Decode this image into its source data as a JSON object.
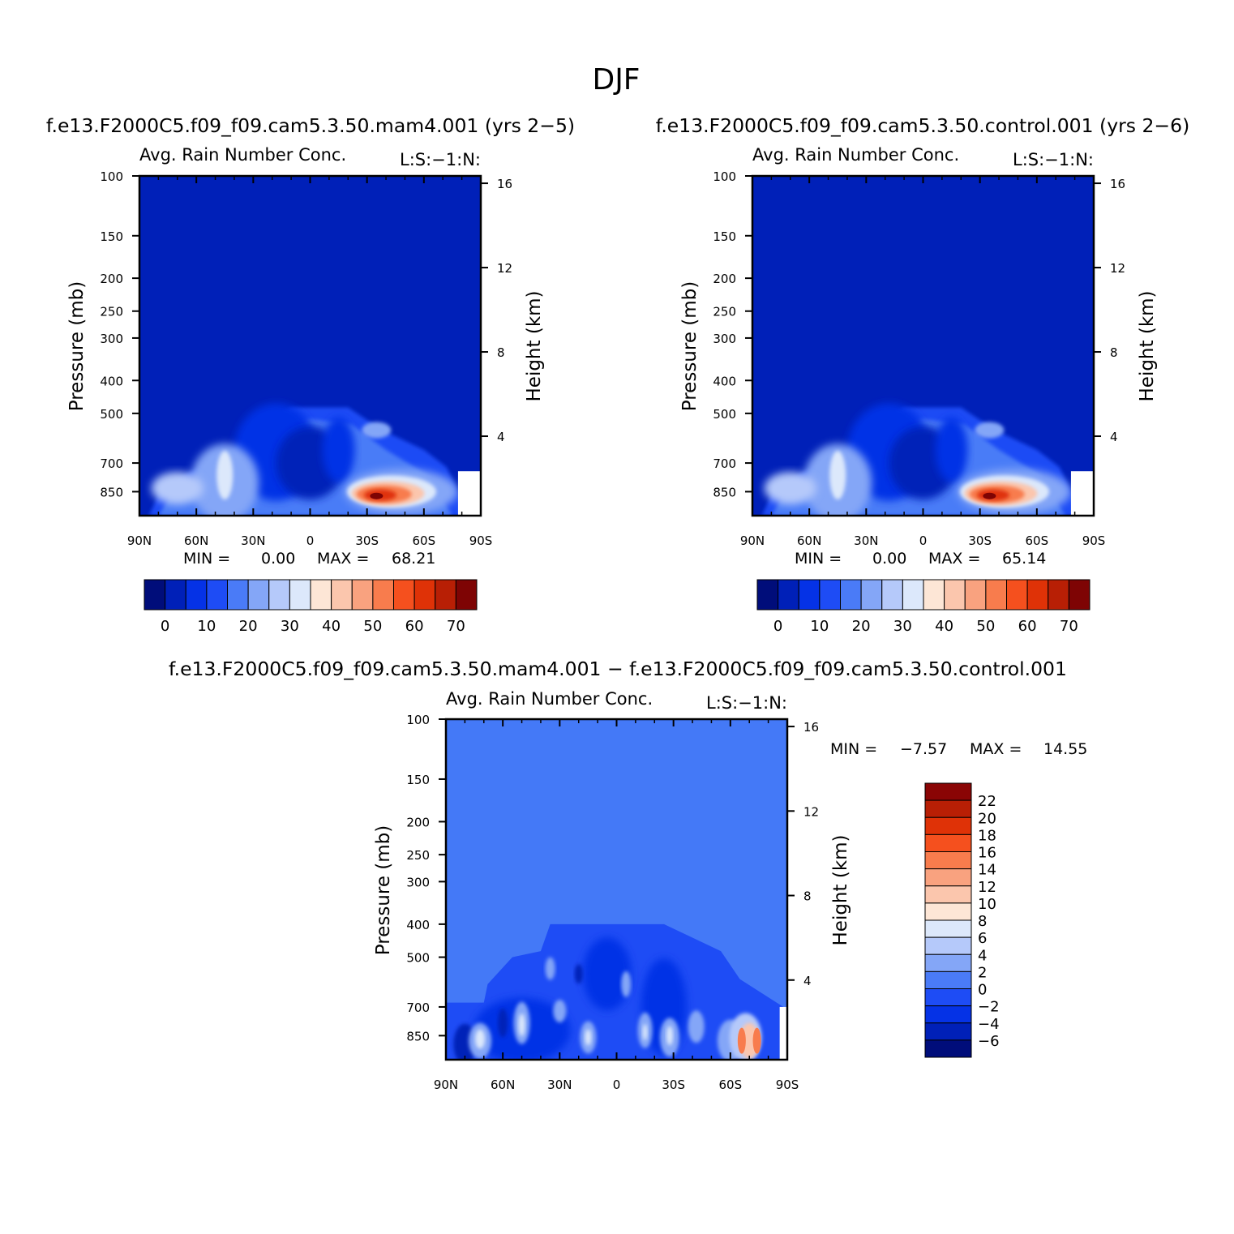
{
  "figure": {
    "title": "DJF"
  },
  "chart_data": [
    {
      "type": "heatmap",
      "case_title": "f.e13.F2000C5.f09_f09.cam5.3.50.mam4.001 (yrs 2−5)",
      "variable": "Avg. Rain Number Conc.",
      "tag": "L:S:−1:N:",
      "ylabel": "Pressure (mb)",
      "ylabel_right": "Height (km)",
      "x_ticks": [
        "90N",
        "60N",
        "30N",
        "0",
        "30S",
        "60S",
        "90S"
      ],
      "y_ticks": [
        "100",
        "150",
        "200",
        "250",
        "300",
        "400",
        "500",
        "700",
        "850"
      ],
      "y_right_ticks": [
        "16",
        "12",
        "8",
        "4"
      ],
      "min_label": "MIN =",
      "min_value": "0.00",
      "max_label": "MAX =",
      "max_value": "68.21",
      "colorbar": {
        "labels": [
          "0",
          "10",
          "20",
          "30",
          "40",
          "50",
          "60",
          "70"
        ],
        "colors": [
          "#000d7a",
          "#0020b8",
          "#0532e6",
          "#1e4cf5",
          "#4a7bf7",
          "#84a6f7",
          "#b5c9fa",
          "#dce8fb",
          "#fde6d6",
          "#fbc6ad",
          "#f9a27f",
          "#f87c4d",
          "#f5501e",
          "#df3207",
          "#b81f05",
          "#7e0404"
        ]
      },
      "field": {
        "background": "#0020b8",
        "max_location": {
          "lat": -43,
          "pressure": 850
        }
      }
    },
    {
      "type": "heatmap",
      "case_title": "f.e13.F2000C5.f09_f09.cam5.3.50.control.001 (yrs 2−6)",
      "variable": "Avg. Rain Number Conc.",
      "tag": "L:S:−1:N:",
      "ylabel": "Pressure (mb)",
      "ylabel_right": "Height (km)",
      "x_ticks": [
        "90N",
        "60N",
        "30N",
        "0",
        "30S",
        "60S",
        "90S"
      ],
      "y_ticks": [
        "100",
        "150",
        "200",
        "250",
        "300",
        "400",
        "500",
        "700",
        "850"
      ],
      "y_right_ticks": [
        "16",
        "12",
        "8",
        "4"
      ],
      "min_label": "MIN =",
      "min_value": "0.00",
      "max_label": "MAX =",
      "max_value": "65.14",
      "colorbar": {
        "labels": [
          "0",
          "10",
          "20",
          "30",
          "40",
          "50",
          "60",
          "70"
        ],
        "colors": [
          "#000d7a",
          "#0020b8",
          "#0532e6",
          "#1e4cf5",
          "#4a7bf7",
          "#84a6f7",
          "#b5c9fa",
          "#dce8fb",
          "#fde6d6",
          "#fbc6ad",
          "#f9a27f",
          "#f87c4d",
          "#f5501e",
          "#df3207",
          "#b81f05",
          "#7e0404"
        ]
      },
      "field": {
        "background": "#0020b8",
        "max_location": {
          "lat": -43,
          "pressure": 850
        }
      }
    },
    {
      "type": "heatmap",
      "case_title": "f.e13.F2000C5.f09_f09.cam5.3.50.mam4.001 − f.e13.F2000C5.f09_f09.cam5.3.50.control.001",
      "variable": "Avg. Rain Number Conc.",
      "tag": "L:S:−1:N:",
      "ylabel": "Pressure (mb)",
      "ylabel_right": "Height (km)",
      "x_ticks": [
        "90N",
        "60N",
        "30N",
        "0",
        "30S",
        "60S",
        "90S"
      ],
      "y_ticks": [
        "100",
        "150",
        "200",
        "250",
        "300",
        "400",
        "500",
        "700",
        "850"
      ],
      "y_right_ticks": [
        "16",
        "12",
        "8",
        "4"
      ],
      "min_label": "MIN =",
      "min_value": "−7.57",
      "max_label": "MAX =",
      "max_value": "14.55",
      "colorbar": {
        "labels": [
          "22",
          "20",
          "18",
          "16",
          "14",
          "12",
          "10",
          "8",
          "6",
          "4",
          "2",
          "0",
          "−2",
          "−4",
          "−6"
        ],
        "colors": [
          "#8a0505",
          "#b81f05",
          "#df3207",
          "#f5501e",
          "#f87c4d",
          "#f9a27f",
          "#fbc6ad",
          "#fde6d6",
          "#dce8fb",
          "#b5c9fa",
          "#84a6f7",
          "#4a7bf7",
          "#1e4cf5",
          "#0532e6",
          "#0020b8",
          "#000d7a"
        ]
      },
      "field": {
        "background": "#4479f7",
        "max_location": {
          "lat": -70,
          "pressure": 850
        }
      }
    }
  ]
}
